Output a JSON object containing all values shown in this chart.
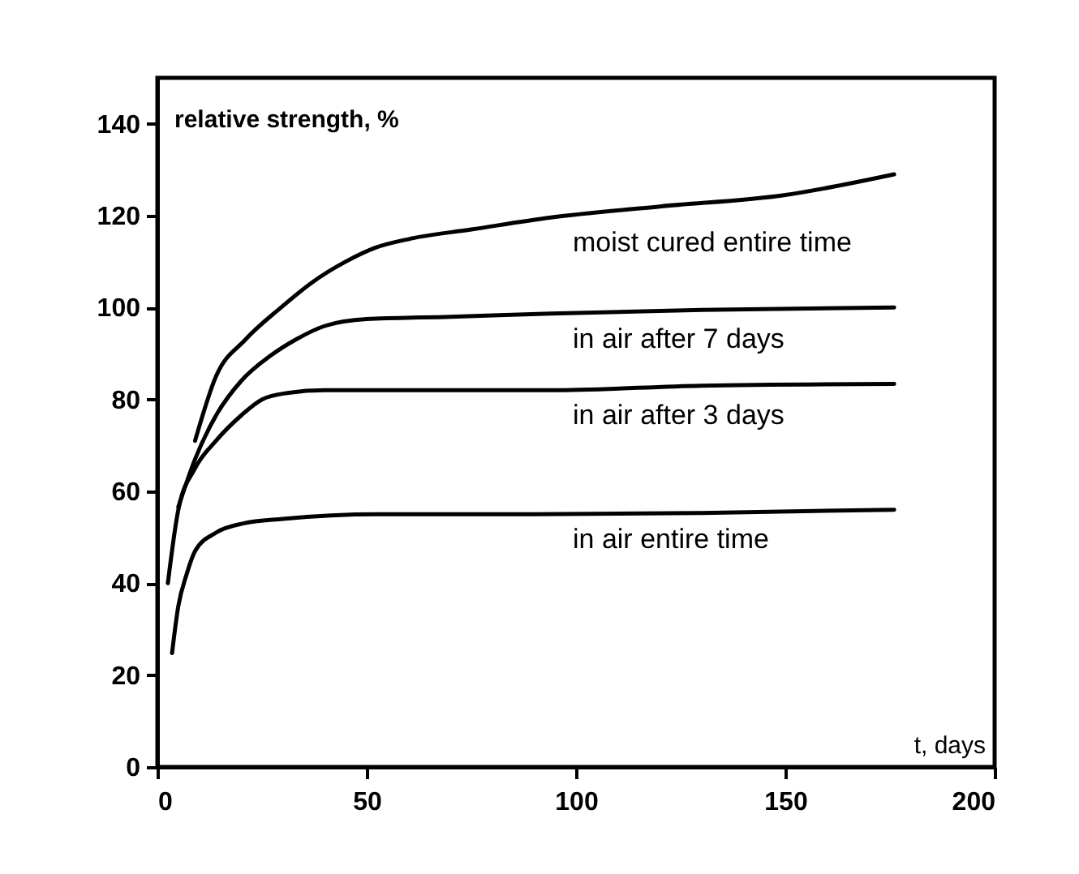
{
  "chart_data": {
    "type": "line",
    "xlabel": "t, days",
    "ylabel": "relative strength, %",
    "xlim": [
      0,
      200
    ],
    "ylim": [
      0,
      150
    ],
    "xticks": [
      0,
      50,
      100,
      150,
      200
    ],
    "yticks": [
      0,
      20,
      40,
      60,
      80,
      100,
      120,
      140
    ],
    "grid": false,
    "legend": false,
    "series": [
      {
        "name": "moist cured entire time",
        "color": "#000000",
        "x": [
          9,
          14,
          21,
          29.5,
          37,
          45,
          52,
          60.5,
          75,
          94,
          120,
          150,
          176
        ],
        "values": [
          71,
          85,
          93,
          100,
          105.5,
          110,
          113,
          115,
          117,
          119.6,
          122,
          124.5,
          129
        ]
      },
      {
        "name": "in air after 7 days",
        "color": "#000000",
        "x": [
          5,
          9,
          14,
          20,
          27,
          33,
          40,
          50,
          70,
          94,
          130,
          176
        ],
        "values": [
          56.6,
          67,
          76.5,
          84,
          89.5,
          93,
          96,
          97.5,
          98,
          98.7,
          99.5,
          100
        ]
      },
      {
        "name": "in air after 3 days",
        "color": "#000000",
        "x": [
          2.5,
          5,
          9,
          14,
          20,
          25,
          31,
          40,
          70,
          94,
          130,
          176
        ],
        "values": [
          40,
          56,
          65,
          71,
          76.5,
          80,
          81.4,
          82,
          82,
          82,
          83,
          83.4
        ]
      },
      {
        "name": "in air entire time",
        "color": "#000000",
        "x": [
          3.5,
          5,
          7,
          9,
          14,
          20.5,
          30,
          53,
          90,
          130,
          176
        ],
        "values": [
          24.8,
          35,
          42,
          47,
          51,
          53,
          54,
          55,
          55,
          55.3,
          56
        ]
      }
    ]
  }
}
